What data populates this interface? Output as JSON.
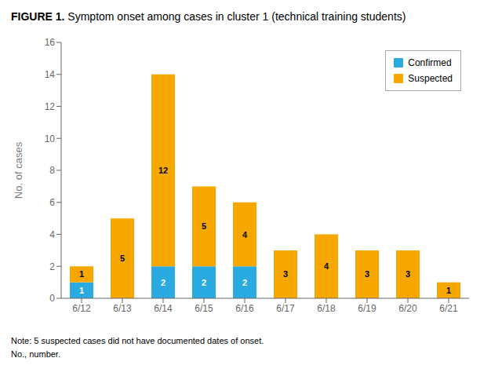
{
  "chart_data": {
    "type": "bar",
    "title": "FIGURE 1.",
    "subtitle": "Symptom onset among cases in cluster 1 (technical training students)",
    "categories": [
      "6/12",
      "6/13",
      "6/14",
      "6/15",
      "6/16",
      "6/17",
      "6/18",
      "6/19",
      "6/20",
      "6/21"
    ],
    "series": [
      {
        "name": "Confirmed",
        "color": "#29ABE2",
        "values": [
          1,
          0,
          2,
          2,
          2,
          0,
          0,
          0,
          0,
          0
        ]
      },
      {
        "name": "Suspected",
        "color": "#F7A800",
        "values": [
          1,
          5,
          12,
          5,
          4,
          3,
          4,
          3,
          3,
          1
        ]
      }
    ],
    "y_label": "No. of cases",
    "ylim": [
      0,
      16
    ],
    "yticks": [
      0,
      2,
      4,
      6,
      8,
      10,
      12,
      14,
      16
    ],
    "stacked": true,
    "data_labels": true,
    "grid": false,
    "legend": "upper right",
    "annotations": [
      "Note: 5 suspected cases did not have documented dates of onset.",
      "No., number."
    ]
  }
}
